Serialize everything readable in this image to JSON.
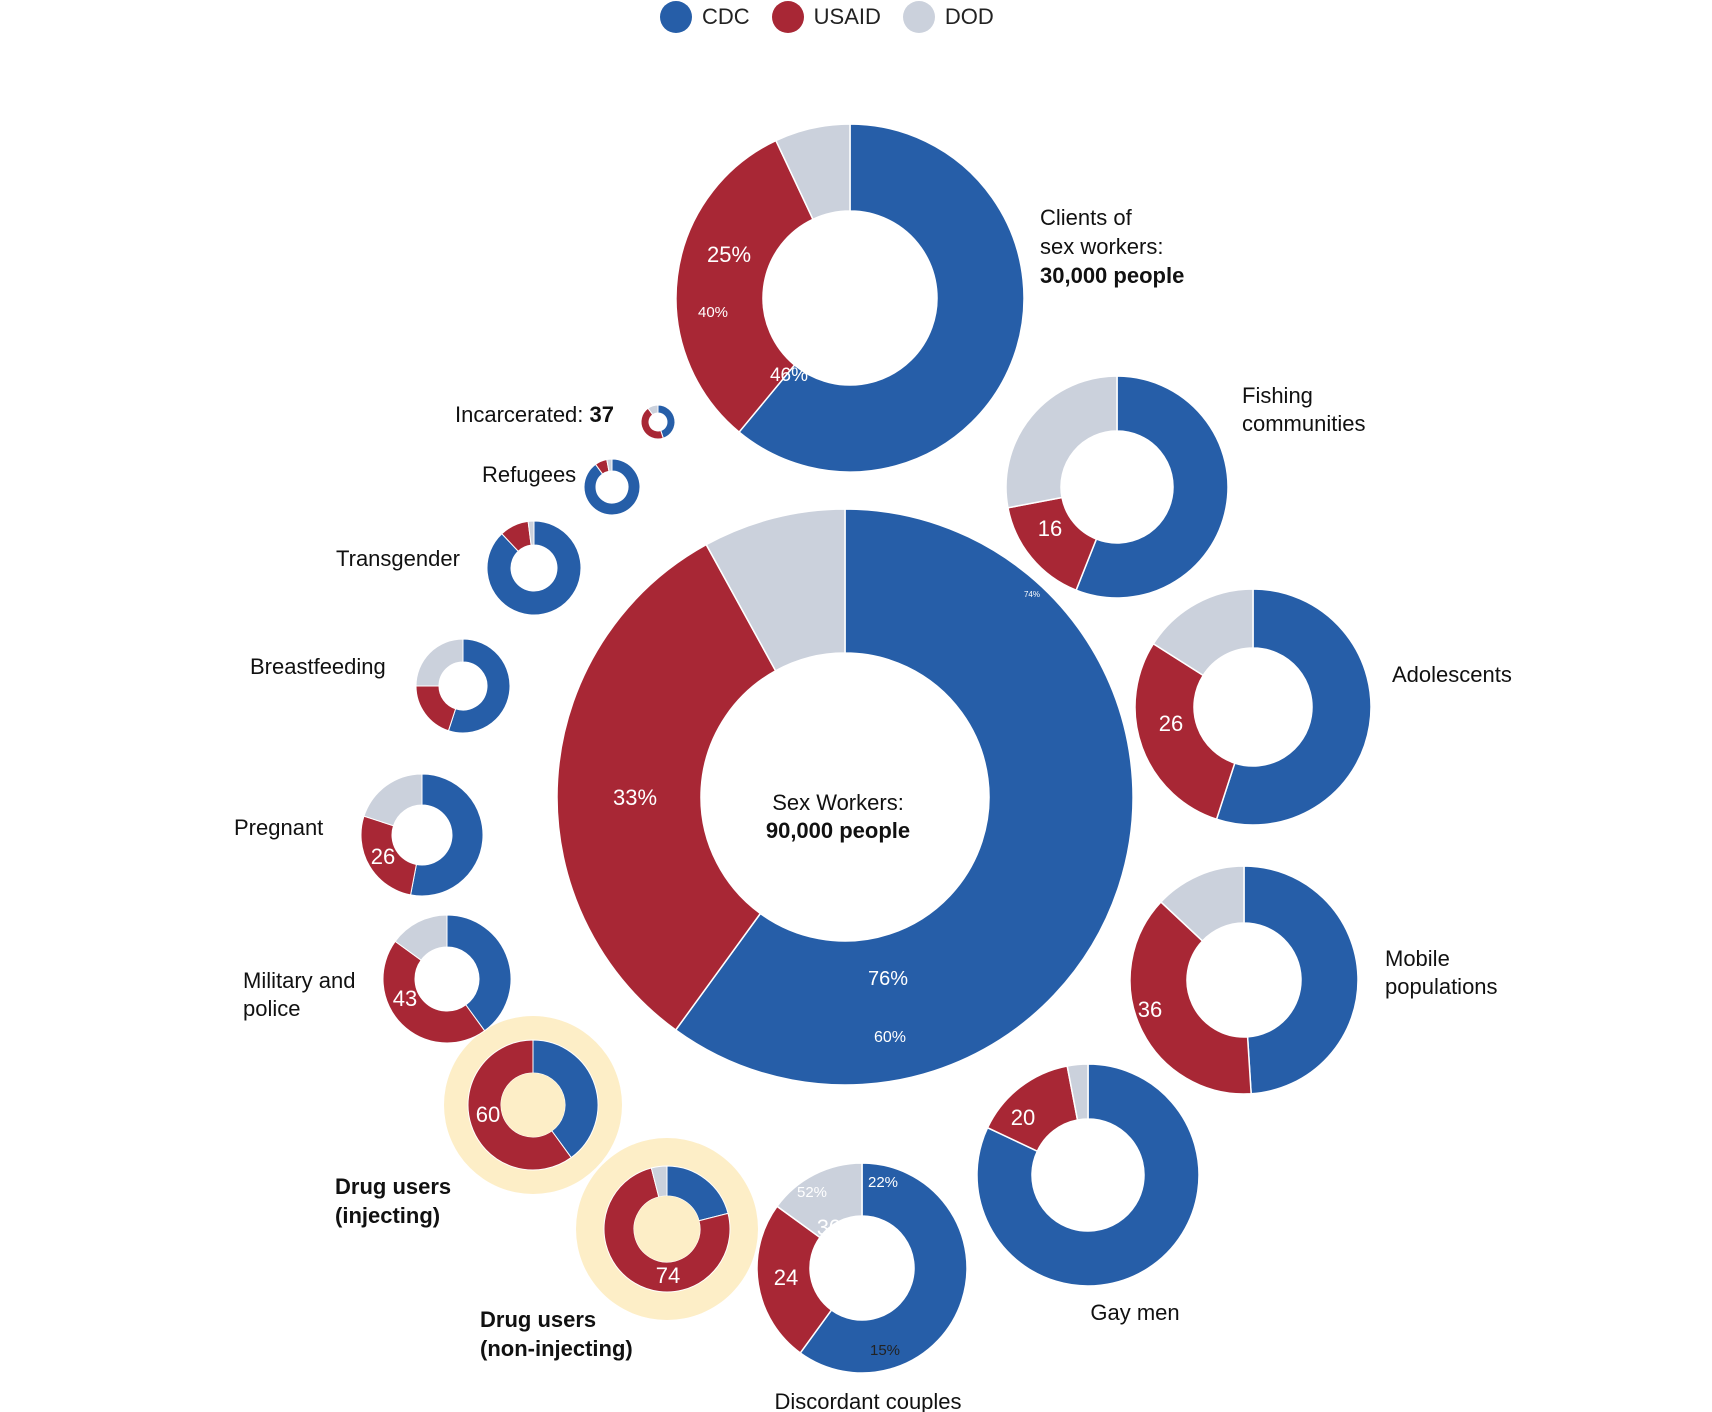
{
  "colors": {
    "CDC": "#265ea8",
    "USAID": "#a82735",
    "DOD": "#cbd1dc",
    "highlight": "#fdeec7"
  },
  "legend": [
    {
      "name": "CDC",
      "color": "#265ea8"
    },
    {
      "name": "USAID",
      "color": "#a82735"
    },
    {
      "name": "DOD",
      "color": "#cbd1dc"
    }
  ],
  "chart_data": {
    "type": "donut",
    "series_names": [
      "CDC",
      "USAID",
      "DOD"
    ],
    "groups": [
      {
        "label": [
          "Sex Workers:"
        ],
        "bold_label": "90,000 people",
        "people": 90000,
        "shares": [
          0.6,
          0.32,
          0.08
        ],
        "slice_labels": [
          "76%",
          "60%",
          "33%",
          "74%"
        ]
      },
      {
        "label": [
          "Clients of",
          "sex workers:"
        ],
        "bold_label": "30,000 people",
        "people": 30000,
        "shares": [
          0.61,
          0.32,
          0.07
        ],
        "slice_labels": [
          "46%",
          "40%",
          "25%"
        ]
      },
      {
        "label": [
          "Fishing",
          "communities"
        ],
        "shares": [
          0.56,
          0.16,
          0.28
        ],
        "slice_labels": [
          "16"
        ]
      },
      {
        "label": [
          "Adolescents"
        ],
        "shares": [
          0.55,
          0.29,
          0.16
        ],
        "slice_labels": [
          "26"
        ]
      },
      {
        "label": [
          "Mobile",
          "populations"
        ],
        "shares": [
          0.49,
          0.38,
          0.13
        ],
        "slice_labels": [
          "36"
        ]
      },
      {
        "label": [
          "Gay men"
        ],
        "shares": [
          0.82,
          0.15,
          0.03
        ],
        "slice_labels": [
          "20"
        ]
      },
      {
        "label": [
          "Discordant couples"
        ],
        "shares": [
          0.6,
          0.25,
          0.15
        ],
        "slice_labels": [
          "22%",
          "15%",
          "52%",
          "30",
          "24"
        ]
      },
      {
        "label": [
          "Drug users",
          "(non-injecting)"
        ],
        "label_bold": true,
        "highlight": true,
        "shares": [
          0.21,
          0.75,
          0.04
        ],
        "slice_labels": [
          "74"
        ]
      },
      {
        "label": [
          "Drug users",
          "(injecting)"
        ],
        "label_bold": true,
        "highlight": true,
        "shares": [
          0.4,
          0.6,
          0.0
        ],
        "slice_labels": [
          "60"
        ]
      },
      {
        "label": [
          "Military and",
          "police"
        ],
        "shares": [
          0.4,
          0.45,
          0.15
        ],
        "slice_labels": [
          "43"
        ]
      },
      {
        "label": [
          "Pregnant"
        ],
        "shares": [
          0.53,
          0.27,
          0.2
        ],
        "slice_labels": [
          "26"
        ]
      },
      {
        "label": [
          "Breastfeeding"
        ],
        "shares": [
          0.55,
          0.2,
          0.25
        ],
        "slice_labels": []
      },
      {
        "label": [
          "Transgender"
        ],
        "shares": [
          0.88,
          0.1,
          0.02
        ],
        "slice_labels": []
      },
      {
        "label": [
          "Refugees"
        ],
        "shares": [
          0.9,
          0.07,
          0.03
        ],
        "slice_labels": []
      },
      {
        "label": [
          "Incarcerated:"
        ],
        "bold_label": "37",
        "shares": [
          0.45,
          0.45,
          0.1
        ],
        "slice_labels": []
      }
    ]
  }
}
